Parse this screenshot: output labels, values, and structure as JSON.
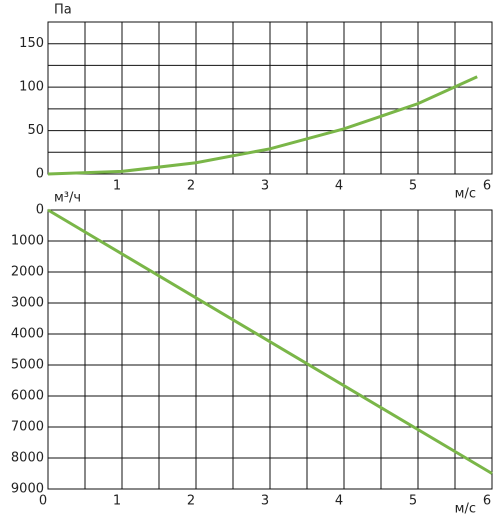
{
  "chart_data": [
    {
      "type": "line",
      "y_label": "Па",
      "x_label": "м/с",
      "xlim": [
        0,
        6
      ],
      "xticks": [
        1,
        2,
        3,
        4,
        5,
        6
      ],
      "minor_xticks": [
        0.5,
        1.5,
        2.5,
        3.5,
        4.5,
        5.5
      ],
      "ylim": [
        0,
        175
      ],
      "yticks": [
        0,
        50,
        100,
        150
      ],
      "minor_yticks": [
        25,
        75,
        125,
        175
      ],
      "grid": true,
      "x": [
        0,
        1,
        2,
        3,
        4,
        5,
        5.8
      ],
      "series": [
        {
          "color": "#7ab648",
          "values": [
            0,
            3,
            13,
            29,
            52,
            81,
            112
          ]
        }
      ]
    },
    {
      "type": "line",
      "y_label": "м³/ч",
      "x_label": "м/с",
      "y_inverted": true,
      "xlim": [
        0,
        6
      ],
      "xticks": [
        0,
        1,
        2,
        3,
        4,
        5,
        6
      ],
      "minor_xticks": [
        0.5,
        1.5,
        2.5,
        3.5,
        4.5,
        5.5
      ],
      "ylim": [
        0,
        9000
      ],
      "yticks": [
        0,
        1000,
        2000,
        3000,
        4000,
        5000,
        6000,
        7000,
        8000,
        9000
      ],
      "grid": true,
      "x": [
        0,
        6
      ],
      "series": [
        {
          "color": "#7ab648",
          "values": [
            0,
            8500
          ]
        }
      ]
    }
  ]
}
